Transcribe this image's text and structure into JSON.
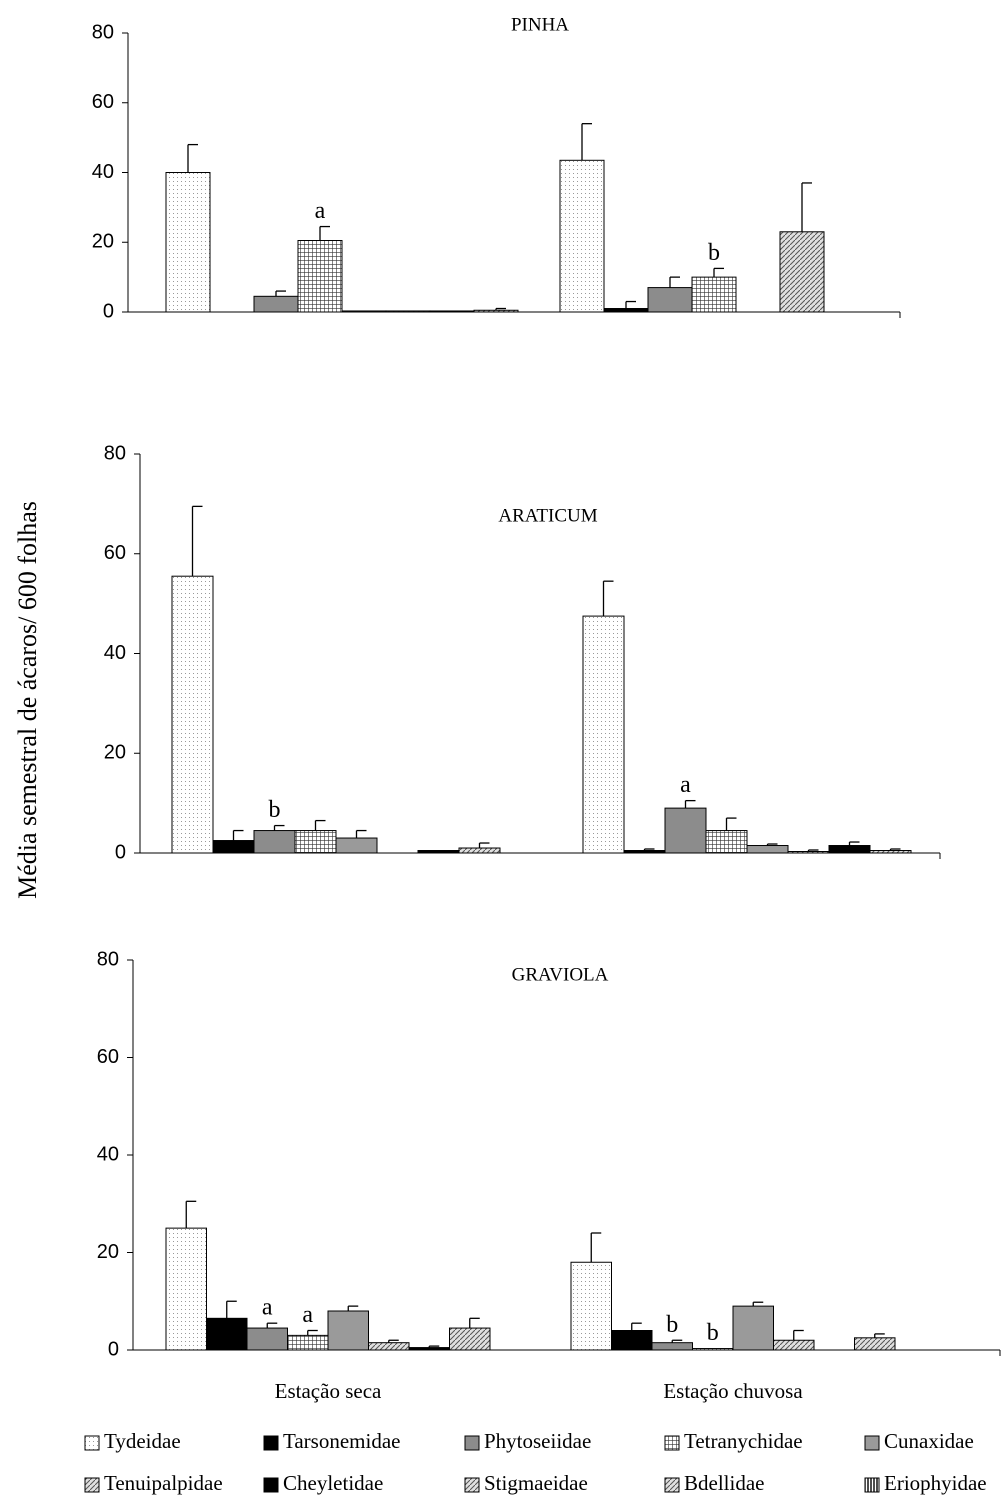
{
  "chart_data": {
    "type": "bar",
    "ylabel": "Média semestral de ácaros/ 600 folhas",
    "categories": [
      "Estação seca",
      "Estação chuvosa"
    ],
    "ylim": [
      0,
      80
    ],
    "yticks": [
      0,
      20,
      40,
      60,
      80
    ],
    "series": [
      {
        "name": "Tydeidae",
        "color": "#f2f2f2",
        "pattern": "dots"
      },
      {
        "name": "Tarsonemidae",
        "color": "#000000",
        "pattern": "solid"
      },
      {
        "name": "Phytoseiidae",
        "color": "#8c8c8c",
        "pattern": "solid"
      },
      {
        "name": "Tetranychidae",
        "color": "#bdbdbd",
        "pattern": "grid"
      },
      {
        "name": "Cunaxidae",
        "color": "#9a9a9a",
        "pattern": "solid"
      },
      {
        "name": "Tenuipalpidae",
        "color": "#d0d0d0",
        "pattern": "hatch"
      },
      {
        "name": "Cheyletidae",
        "color": "#000000",
        "pattern": "solid"
      },
      {
        "name": "Stigmaeidae",
        "color": "#e8e8e8",
        "pattern": "hatch"
      },
      {
        "name": "Bdellidae",
        "color": "#a8a8a8",
        "pattern": "hatch"
      },
      {
        "name": "Eriophyidae",
        "color": "#909090",
        "pattern": "vertical"
      }
    ],
    "panels": [
      {
        "title": "PINHA",
        "series": [
          {
            "values": [
              40,
              43.5
            ],
            "errors": [
              8,
              10.5
            ]
          },
          {
            "values": [
              0,
              1
            ],
            "errors": [
              0,
              2
            ]
          },
          {
            "values": [
              4.5,
              7
            ],
            "errors": [
              1.5,
              3
            ]
          },
          {
            "values": [
              20.5,
              10
            ],
            "errors": [
              4,
              2.5
            ],
            "letters": [
              "a",
              "b"
            ]
          },
          {
            "values": [
              0.3,
              0
            ],
            "errors": [
              0,
              0
            ]
          },
          {
            "values": [
              0.3,
              23
            ],
            "errors": [
              0,
              14
            ]
          },
          {
            "values": [
              0.3,
              0
            ],
            "errors": [
              0,
              0
            ]
          },
          {
            "values": [
              0.5,
              0
            ],
            "errors": [
              0.5,
              0
            ]
          }
        ]
      },
      {
        "title": "ARATICUM",
        "series": [
          {
            "values": [
              55.5,
              47.5
            ],
            "errors": [
              14,
              7
            ]
          },
          {
            "values": [
              2.5,
              0.5
            ],
            "errors": [
              2,
              0.3
            ]
          },
          {
            "values": [
              4.5,
              9
            ],
            "errors": [
              1,
              1.5
            ],
            "letters": [
              "b",
              "a"
            ]
          },
          {
            "values": [
              4.5,
              4.5
            ],
            "errors": [
              2,
              2.5
            ]
          },
          {
            "values": [
              3,
              1.5
            ],
            "errors": [
              1.5,
              0.3
            ]
          },
          {
            "values": [
              0,
              0.3
            ],
            "errors": [
              0,
              0.3
            ]
          },
          {
            "values": [
              0.5,
              1.5
            ],
            "errors": [
              0,
              0.7
            ]
          },
          {
            "values": [
              1,
              0.5
            ],
            "errors": [
              1,
              0.3
            ]
          }
        ]
      },
      {
        "title": "GRAVIOLA",
        "series": [
          {
            "values": [
              25,
              18
            ],
            "errors": [
              5.5,
              6
            ]
          },
          {
            "values": [
              6.5,
              4
            ],
            "errors": [
              3.5,
              1.5
            ]
          },
          {
            "values": [
              4.5,
              1.5
            ],
            "errors": [
              1,
              0.5
            ],
            "letters": [
              "a",
              "b"
            ]
          },
          {
            "values": [
              3,
              0.3
            ],
            "errors": [
              1,
              0
            ],
            "letters": [
              "a",
              "b"
            ]
          },
          {
            "values": [
              8,
              9
            ],
            "errors": [
              1,
              0.8
            ]
          },
          {
            "values": [
              1.5,
              2
            ],
            "errors": [
              0.5,
              2
            ]
          },
          {
            "values": [
              0.5,
              0
            ],
            "errors": [
              0.3,
              0
            ]
          },
          {
            "values": [
              4.5,
              2.5
            ],
            "errors": [
              2,
              0.8
            ]
          }
        ]
      }
    ]
  }
}
